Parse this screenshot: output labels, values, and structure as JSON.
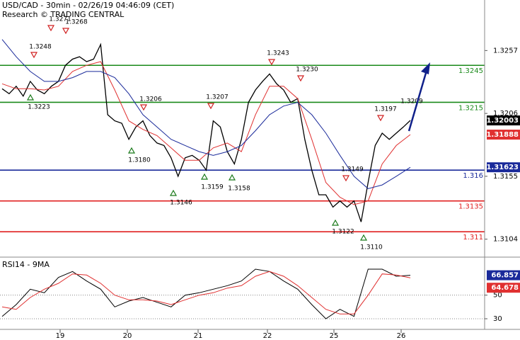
{
  "chart_data": [
    {
      "type": "line",
      "title": "USD/CAD - 30min - 02/26/19 04:46:09 (CET)",
      "subtitle": "Research © TRADING CENTRAL",
      "ylim": [
        1.309,
        1.3298
      ],
      "yticks": [
        1.3257,
        1.3206,
        1.3155,
        1.3104
      ],
      "xticks": [
        19,
        20,
        21,
        22,
        25,
        26
      ],
      "series": [
        {
          "color": "#000000",
          "values": [
            1.3226,
            1.3222,
            1.3228,
            1.322,
            1.3232,
            1.3225,
            1.3222,
            1.3228,
            1.3232,
            1.3245,
            1.325,
            1.3252,
            1.3248,
            1.325,
            1.3262,
            1.3205,
            1.32,
            1.3198,
            1.3185,
            1.3195,
            1.32,
            1.3188,
            1.3182,
            1.318,
            1.317,
            1.3155,
            1.317,
            1.3172,
            1.3168,
            1.316,
            1.32,
            1.3195,
            1.3175,
            1.3165,
            1.3185,
            1.3215,
            1.3225,
            1.3232,
            1.3238,
            1.323,
            1.3225,
            1.3215,
            1.3218,
            1.3185,
            1.316,
            1.314,
            1.314,
            1.313,
            1.3135,
            1.313,
            1.3135,
            1.3118,
            1.315,
            1.318,
            1.319,
            1.3185,
            1.319,
            1.3195,
            1.32003
          ]
        },
        {
          "color": "#e03030",
          "values": [
            1.323,
            1.3226,
            1.3226,
            1.3225,
            1.3228,
            1.324,
            1.3245,
            1.3248,
            1.3225,
            1.32,
            1.3193,
            1.3188,
            1.3178,
            1.3168,
            1.3168,
            1.3178,
            1.3182,
            1.3175,
            1.3205,
            1.3228,
            1.3228,
            1.3218,
            1.3185,
            1.315,
            1.3138,
            1.3132,
            1.3135,
            1.3165,
            1.318,
            1.31888
          ]
        },
        {
          "color": "#1a2a9a",
          "values": [
            1.3266,
            1.3252,
            1.324,
            1.3232,
            1.3232,
            1.3235,
            1.324,
            1.324,
            1.3235,
            1.3222,
            1.3205,
            1.3195,
            1.3185,
            1.318,
            1.3175,
            1.3172,
            1.3175,
            1.318,
            1.3192,
            1.3205,
            1.3212,
            1.3215,
            1.3205,
            1.319,
            1.3172,
            1.3155,
            1.3145,
            1.3148,
            1.3155,
            1.31623
          ]
        }
      ],
      "levels": [
        {
          "value": 1.3245,
          "color": "#1a8a1a"
        },
        {
          "value": 1.3215,
          "color": "#1a8a1a"
        },
        {
          "value": 1.316,
          "color": "#1a2a9a"
        },
        {
          "value": 1.3135,
          "color": "#e02020"
        },
        {
          "value": 1.311,
          "color": "#e02020"
        }
      ],
      "annotations": [
        {
          "value": 1.3248,
          "kind": "high"
        },
        {
          "value": 1.3271,
          "kind": "high"
        },
        {
          "value": 1.3268,
          "kind": "high"
        },
        {
          "value": 1.3223,
          "kind": "low"
        },
        {
          "value": 1.3206,
          "kind": "high"
        },
        {
          "value": 1.318,
          "label": "1.3180",
          "kind": "low"
        },
        {
          "value": 1.3146,
          "kind": "low"
        },
        {
          "value": 1.3159,
          "kind": "low"
        },
        {
          "value": 1.3207,
          "kind": "high"
        },
        {
          "value": 1.3158,
          "kind": "low"
        },
        {
          "value": 1.3243,
          "kind": "high"
        },
        {
          "value": 1.323,
          "label": "1.3230",
          "kind": "high"
        },
        {
          "value": 1.3149,
          "kind": "high"
        },
        {
          "value": 1.3122,
          "kind": "low"
        },
        {
          "value": 1.311,
          "label": "1.3110",
          "kind": "low"
        },
        {
          "value": 1.3197,
          "kind": "high"
        },
        {
          "value": 1.3209,
          "kind": "text"
        }
      ]
    },
    {
      "type": "line",
      "title": "RSI14 - 9MA",
      "ylim": [
        21,
        81
      ],
      "yticks": [
        50,
        30
      ],
      "series": [
        {
          "color": "#000000",
          "values": [
            32,
            42,
            55,
            52,
            65,
            70,
            62,
            55,
            40,
            45,
            48,
            44,
            40,
            50,
            52,
            55,
            58,
            62,
            72,
            70,
            62,
            55,
            42,
            30,
            38,
            32,
            72,
            72,
            66,
            66.857
          ]
        },
        {
          "color": "#e03030",
          "values": [
            40,
            38,
            48,
            55,
            60,
            68,
            67,
            60,
            50,
            46,
            46,
            45,
            42,
            46,
            50,
            52,
            56,
            58,
            66,
            70,
            66,
            58,
            48,
            38,
            34,
            34,
            50,
            68,
            67,
            64.678
          ]
        }
      ]
    }
  ]
}
